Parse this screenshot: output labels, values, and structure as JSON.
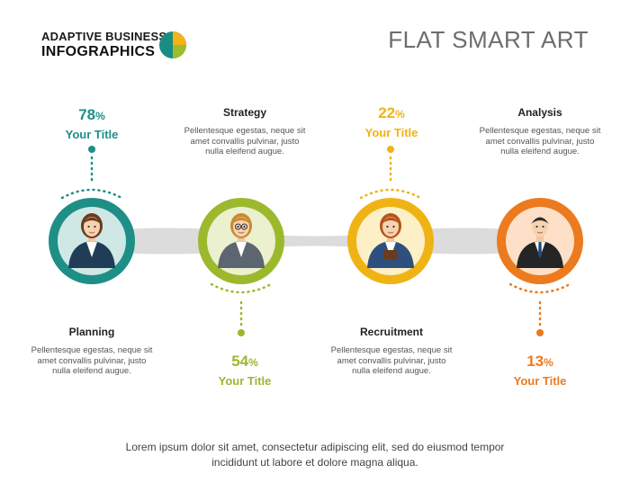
{
  "brand": {
    "line1": "ADAPTIVE BUSINESS",
    "line2": "INFOGRAPHICS",
    "logo_colors": [
      "#1b8c82",
      "#f3b316",
      "#9bbd2d"
    ]
  },
  "title": "FLAT SMART ART",
  "steps": [
    {
      "percent": "78",
      "percent_unit": "%",
      "subtitle": "Your Title",
      "color": "#1e8f86",
      "heading": "Planning",
      "description": "Pellentesque egestas, neque sit amet convallis pulvinar, justo nulla eleifend augue.",
      "icon": "businesswoman-icon"
    },
    {
      "percent": "54",
      "percent_unit": "%",
      "subtitle": "Your Title",
      "color": "#9cb92e",
      "heading": "Strategy",
      "description": "Pellentesque egestas, neque sit amet convallis pulvinar, justo nulla eleifend augue.",
      "icon": "woman-with-glasses-icon"
    },
    {
      "percent": "22",
      "percent_unit": "%",
      "subtitle": "Your Title",
      "color": "#f0b316",
      "heading": "Recruitment",
      "description": "Pellentesque egestas, neque sit amet convallis pulvinar, justo nulla eleifend augue.",
      "icon": "woman-with-folder-icon"
    },
    {
      "percent": "13",
      "percent_unit": "%",
      "subtitle": "Your Title",
      "color": "#ec7a1e",
      "heading": "Analysis",
      "description": "Pellentesque egestas, neque sit amet convallis pulvinar, justo nulla eleifend augue.",
      "icon": "businessman-icon"
    }
  ],
  "footer": {
    "line1": "Lorem ipsum dolor sit amet, consectetur adipiscing elit, sed do eiusmod tempor",
    "line2": "incididunt ut labore et dolore magna aliqua."
  }
}
